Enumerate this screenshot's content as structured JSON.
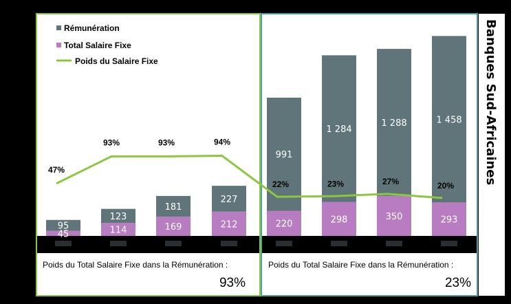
{
  "chart_data": {
    "type": "bar",
    "title": "Banques Sud-Africaines",
    "categories": [
      "",
      "",
      "",
      "",
      "",
      "",
      "",
      ""
    ],
    "series": [
      {
        "name": "Total Salaire Fixe",
        "values": [
          45,
          114,
          169,
          212,
          220,
          298,
          350,
          293
        ],
        "labels": [
          "45",
          "114",
          "169",
          "212",
          "220",
          "298",
          "350",
          "293"
        ]
      },
      {
        "name": "Rémunération",
        "values": [
          95,
          123,
          181,
          227,
          991,
          1284,
          1288,
          1458
        ],
        "labels": [
          "95",
          "123",
          "181",
          "227",
          "991",
          "1 284",
          "1 288",
          "1 458"
        ]
      },
      {
        "name": "Poids du Salaire Fixe",
        "type": "line",
        "values": [
          47,
          93,
          93,
          94,
          22,
          23,
          27,
          20
        ],
        "labels": [
          "47%",
          "93%",
          "93%",
          "94%",
          "22%",
          "23%",
          "27%",
          "20%"
        ]
      }
    ],
    "stacked": true,
    "colors": {
      "remuneration": "#5f7579",
      "salaire_fixe": "#b87cc0",
      "poids": "#8dc63f",
      "panel_left": "#8dc63f",
      "panel_right": "#4aa3a0"
    }
  },
  "legend": {
    "items": [
      {
        "label": "Rémunération"
      },
      {
        "label": "Total Salaire Fixe"
      },
      {
        "label": "Poids du Salaire Fixe"
      }
    ]
  },
  "panels": {
    "left": {
      "caption": "Poids du Total Salaire Fixe dans la Rémunération :",
      "value": "93%"
    },
    "right": {
      "caption": "Poids du Total Salaire Fixe dans la Rémunération :",
      "value": "23%"
    }
  },
  "side_title": "Banques Sud-Africaines"
}
